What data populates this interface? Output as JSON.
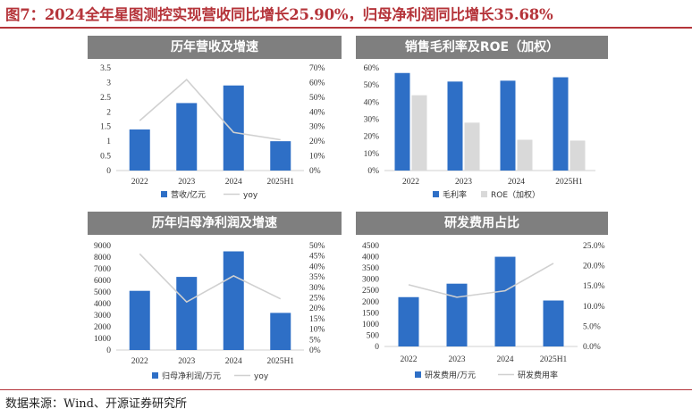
{
  "figure_title": "图7：2024全年星图测控实现营收同比增长25.90%，归母净利润同比增长35.68%",
  "source": "数据来源：Wind、开源证券研究所",
  "colors": {
    "bar_primary": "#2e6fc6",
    "bar_secondary": "#d9d9d9",
    "line": "#d0d0d0",
    "header_bg": "#7f7f7f",
    "title": "#b5343a"
  },
  "chart_data": [
    {
      "type": "bar",
      "title": "历年营收及增速",
      "categories": [
        "2022",
        "2023",
        "2024",
        "2025H1"
      ],
      "series": [
        {
          "name": "营收/亿元",
          "kind": "bar",
          "axis": "left",
          "values": [
            1.4,
            2.3,
            2.9,
            1.0
          ]
        },
        {
          "name": "yoy",
          "kind": "line",
          "axis": "right",
          "values": [
            0.34,
            0.62,
            0.26,
            0.21
          ]
        }
      ],
      "left_axis": {
        "min": 0,
        "max": 3.5,
        "ticks": [
          "0",
          "0.5",
          "1",
          "1.5",
          "2",
          "2.5",
          "3",
          "3.5"
        ]
      },
      "right_axis": {
        "min": 0,
        "max": 0.7,
        "ticks": [
          "0%",
          "10%",
          "20%",
          "30%",
          "40%",
          "50%",
          "60%",
          "70%"
        ]
      },
      "legend": "bottom"
    },
    {
      "type": "bar",
      "title": "销售毛利率及ROE（加权）",
      "categories": [
        "2022",
        "2023",
        "2024",
        "2025H1"
      ],
      "series": [
        {
          "name": "毛利率",
          "kind": "bar",
          "axis": "left",
          "values": [
            0.57,
            0.52,
            0.525,
            0.545
          ]
        },
        {
          "name": "ROE（加权）",
          "kind": "bar",
          "axis": "left",
          "values": [
            0.44,
            0.28,
            0.18,
            0.175
          ]
        }
      ],
      "left_axis": {
        "min": 0,
        "max": 0.6,
        "ticks": [
          "0%",
          "10%",
          "20%",
          "30%",
          "40%",
          "50%",
          "60%"
        ]
      },
      "legend": "bottom"
    },
    {
      "type": "bar",
      "title": "历年归母净利润及增速",
      "categories": [
        "2022",
        "2023",
        "2024",
        "2025H1"
      ],
      "series": [
        {
          "name": "归母净利润/万元",
          "kind": "bar",
          "axis": "left",
          "values": [
            5100,
            6300,
            8500,
            3200
          ]
        },
        {
          "name": "yoy",
          "kind": "line",
          "axis": "right",
          "values": [
            0.46,
            0.23,
            0.355,
            0.245
          ]
        }
      ],
      "left_axis": {
        "min": 0,
        "max": 9000,
        "ticks": [
          "0",
          "1000",
          "2000",
          "3000",
          "4000",
          "5000",
          "6000",
          "7000",
          "8000",
          "9000"
        ]
      },
      "right_axis": {
        "min": 0,
        "max": 0.5,
        "ticks": [
          "0%",
          "5%",
          "10%",
          "15%",
          "20%",
          "25%",
          "30%",
          "35%",
          "40%",
          "45%",
          "50%"
        ]
      },
      "legend": "bottom"
    },
    {
      "type": "bar",
      "title": "研发费用占比",
      "categories": [
        "2022",
        "2023",
        "2024",
        "2025H1"
      ],
      "series": [
        {
          "name": "研发费用/万元",
          "kind": "bar",
          "axis": "left",
          "values": [
            2200,
            2800,
            4000,
            2050
          ]
        },
        {
          "name": "研发费用率",
          "kind": "line",
          "axis": "right",
          "values": [
            0.153,
            0.122,
            0.138,
            0.206
          ]
        }
      ],
      "left_axis": {
        "min": 0,
        "max": 4500,
        "ticks": [
          "0",
          "500",
          "1000",
          "1500",
          "2000",
          "2500",
          "3000",
          "3500",
          "4000",
          "4500"
        ]
      },
      "right_axis": {
        "min": 0,
        "max": 0.25,
        "ticks": [
          "0.0%",
          "5.0%",
          "10.0%",
          "15.0%",
          "20.0%",
          "25.0%"
        ]
      },
      "legend": "bottom"
    }
  ]
}
